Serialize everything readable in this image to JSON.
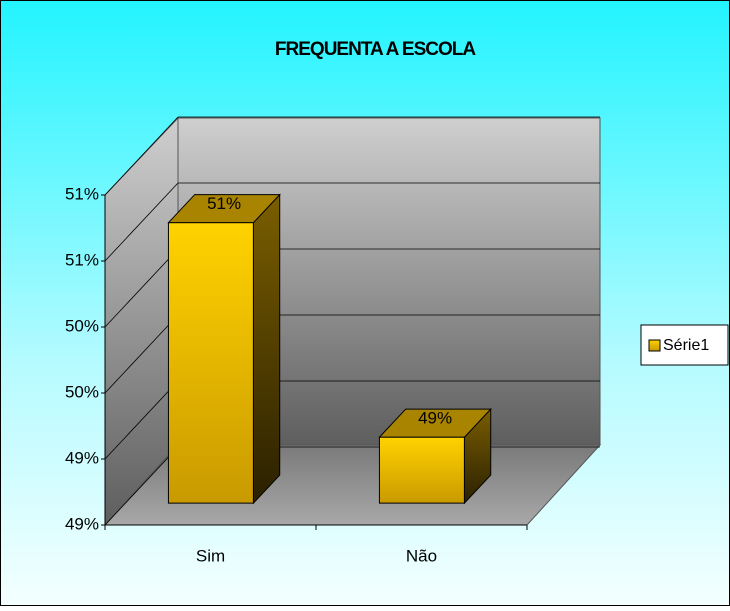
{
  "chart_data": {
    "type": "bar3d",
    "title": "FREQUENTA A ESCOLA",
    "categories": [
      "Sim",
      "Não"
    ],
    "series": [
      {
        "name": "Série1",
        "color": "#ffcc00",
        "values": [
          50.7,
          49.4
        ],
        "value_labels": [
          "51%",
          "49%"
        ]
      }
    ],
    "ylim": [
      49,
      51
    ],
    "yticks": [
      {
        "value": 49,
        "label": "49%"
      },
      {
        "value": 49.4,
        "label": "49%"
      },
      {
        "value": 49.8,
        "label": "50%"
      },
      {
        "value": 50.2,
        "label": "50%"
      },
      {
        "value": 50.6,
        "label": "51%"
      },
      {
        "value": 51,
        "label": "51%"
      }
    ],
    "grid": true,
    "legend": "right"
  }
}
